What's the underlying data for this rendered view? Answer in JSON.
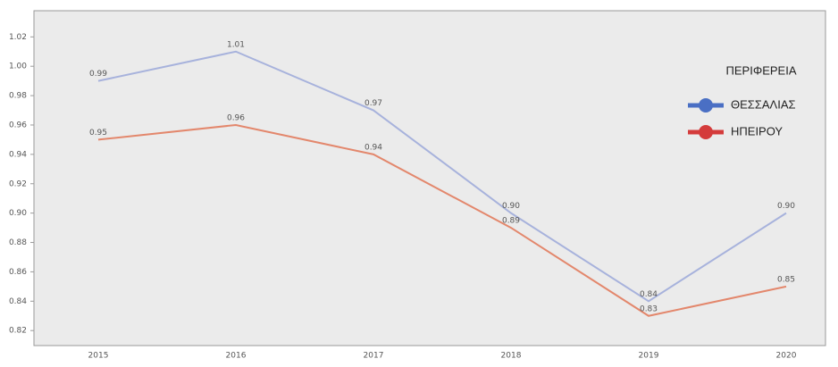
{
  "chart_data": {
    "type": "line",
    "categories": [
      "2015",
      "2016",
      "2017",
      "2018",
      "2019",
      "2020"
    ],
    "series": [
      {
        "name": "ΘΕΣΣΑΛΙΑΣ",
        "color": "#a7b2dc",
        "legend_color": "#4a6fc4",
        "values": [
          0.99,
          1.01,
          0.97,
          0.9,
          0.84,
          0.9
        ],
        "value_labels": [
          "0.99",
          "1.01",
          "0.97",
          "0.90",
          "0.84",
          "0.90"
        ]
      },
      {
        "name": "ΗΠΕΙΡΟΥ",
        "color": "#e3876c",
        "legend_color": "#d43b3b",
        "values": [
          0.95,
          0.96,
          0.94,
          0.89,
          0.83,
          0.85
        ],
        "value_labels": [
          "0.95",
          "0.96",
          "0.94",
          "0.89",
          "0.83",
          "0.85"
        ]
      }
    ],
    "legend_title": "ΠΕΡΙΦΕΡΕΙΑ",
    "ylim": [
      0.811,
      1.036
    ],
    "yticks": [
      1.02,
      {
        "value": 1,
        "label": "1.00"
      },
      0.98,
      0.96,
      0.94,
      0.92,
      {
        "value": 0.9,
        "label": "0.90"
      },
      0.88,
      0.86,
      0.84,
      0.82
    ],
    "grid": false
  }
}
